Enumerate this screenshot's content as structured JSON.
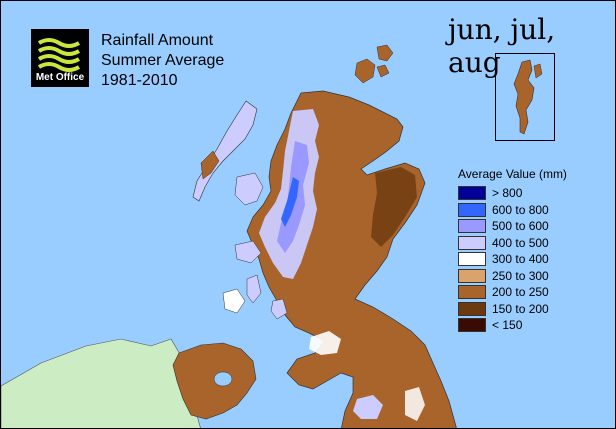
{
  "header": {
    "logo_text": "Met Office",
    "title_lines": [
      "Rainfall Amount",
      "Summer Average",
      "1981-2010"
    ],
    "season": "jun, jul, aug"
  },
  "legend": {
    "title": "Average Value (mm)",
    "items": [
      {
        "label": "> 800",
        "color": "#000099"
      },
      {
        "label": "600 to 800",
        "color": "#3366ff"
      },
      {
        "label": "500 to 600",
        "color": "#9999ff"
      },
      {
        "label": "400 to 500",
        "color": "#ccccff"
      },
      {
        "label": "300 to 400",
        "color": "#ffffff"
      },
      {
        "label": "250 to 300",
        "color": "#d9a36b"
      },
      {
        "label": "200 to 250",
        "color": "#a8642a"
      },
      {
        "label": "150 to 200",
        "color": "#6b3a10"
      },
      {
        "label": "< 150",
        "color": "#3a0a05"
      }
    ]
  },
  "colors": {
    "sea": "#99ccff",
    "ireland_land": "#ccecc4",
    "land_dry": "#a8642a",
    "land_wet": "#ccccff"
  }
}
